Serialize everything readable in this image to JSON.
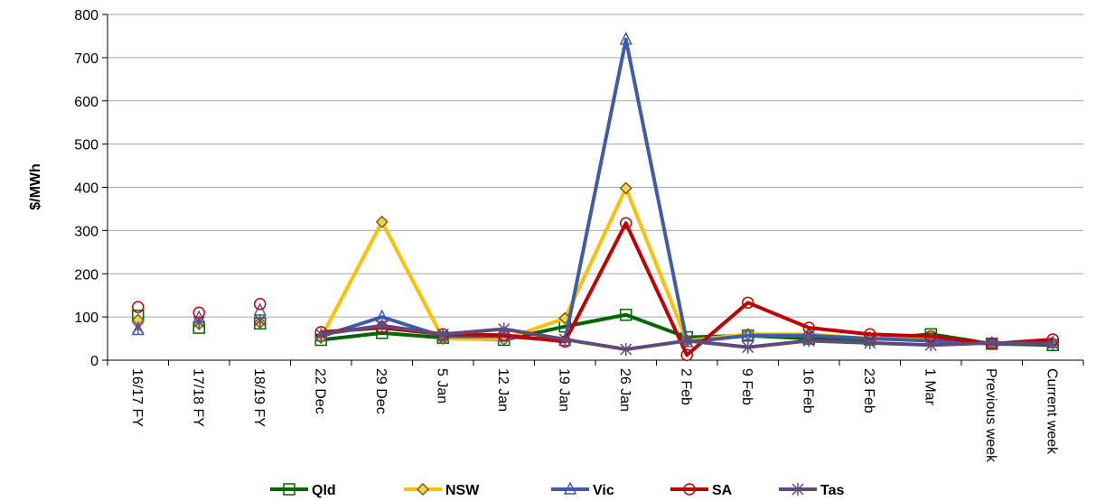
{
  "chart_data": {
    "type": "line",
    "ylabel": "$/MWh",
    "ylim": [
      0,
      800
    ],
    "yticks": [
      0,
      100,
      200,
      300,
      400,
      500,
      600,
      700,
      800
    ],
    "grid": "horizontal",
    "legend_position": "bottom",
    "categories": [
      "16/17 FY",
      "17/18 FY",
      "18/19 FY",
      "22 Dec",
      "29 Dec",
      "5 Jan",
      "12 Jan",
      "19 Jan",
      "26 Jan",
      "2 Feb",
      "9 Feb",
      "16 Feb",
      "23 Feb",
      "1 Mar",
      "Previous week",
      "Current week"
    ],
    "connected_from_index": 3,
    "series": [
      {
        "name": "Qld",
        "color": "#006600",
        "marker": "square",
        "values": [
          103,
          75,
          85,
          47,
          63,
          52,
          47,
          78,
          105,
          53,
          57,
          50,
          48,
          60,
          38,
          35
        ]
      },
      {
        "name": "NSW",
        "color": "#FFC000",
        "marker": "diamond",
        "values": [
          93,
          84,
          87,
          52,
          320,
          50,
          48,
          97,
          398,
          45,
          60,
          60,
          50,
          50,
          40,
          40
        ]
      },
      {
        "name": "Vic",
        "color": "#3F5BA9",
        "marker": "triangle",
        "values": [
          70,
          98,
          115,
          55,
          100,
          55,
          55,
          45,
          742,
          42,
          57,
          57,
          50,
          45,
          38,
          40
        ]
      },
      {
        "name": "SA",
        "color": "#C00000",
        "marker": "circle",
        "values": [
          123,
          110,
          130,
          65,
          75,
          60,
          58,
          43,
          317,
          12,
          133,
          75,
          60,
          55,
          38,
          48
        ]
      },
      {
        "name": "Tas",
        "color": "#604A7B",
        "marker": "star",
        "values": [
          75,
          88,
          92,
          60,
          80,
          60,
          72,
          48,
          25,
          45,
          30,
          45,
          40,
          35,
          40,
          38
        ]
      }
    ]
  }
}
